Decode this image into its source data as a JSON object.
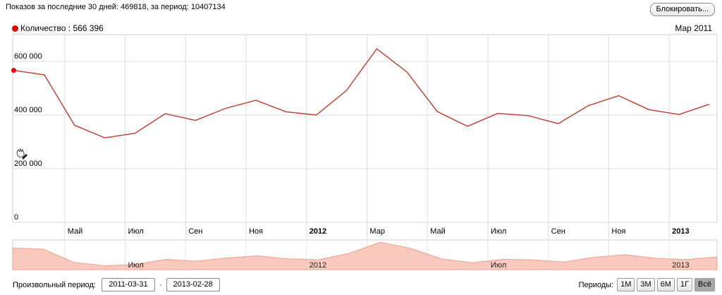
{
  "header": {
    "summary": "Показов за последние 30 дней: 469818, за период: 10407134",
    "block_button": "Блокировать..."
  },
  "legend": {
    "label": "Количество : 566 396",
    "color": "#e00000"
  },
  "current_date_label": "Мар 2011",
  "chart_data": {
    "type": "line",
    "title": "",
    "xlabel": "",
    "ylabel": "",
    "ylim": [
      0,
      700000
    ],
    "y_ticks": [
      "600 000",
      "400 000",
      "200 000",
      "0"
    ],
    "y_tick_values": [
      600000,
      400000,
      200000,
      0
    ],
    "x_ticks": [
      {
        "label": "Май",
        "bold": false
      },
      {
        "label": "Июл",
        "bold": false
      },
      {
        "label": "Сен",
        "bold": false
      },
      {
        "label": "Ноя",
        "bold": false
      },
      {
        "label": "2012",
        "bold": true
      },
      {
        "label": "Мар",
        "bold": false
      },
      {
        "label": "Май",
        "bold": false
      },
      {
        "label": "Июл",
        "bold": false
      },
      {
        "label": "Сен",
        "bold": false
      },
      {
        "label": "Ноя",
        "bold": false
      },
      {
        "label": "2013",
        "bold": true
      }
    ],
    "x": [
      "2011-03",
      "2011-04",
      "2011-05",
      "2011-06",
      "2011-07",
      "2011-08",
      "2011-09",
      "2011-10",
      "2011-11",
      "2011-12",
      "2012-01",
      "2012-02",
      "2012-03",
      "2012-04",
      "2012-05",
      "2012-06",
      "2012-07",
      "2012-08",
      "2012-09",
      "2012-10",
      "2012-11",
      "2012-12",
      "2013-01",
      "2013-02"
    ],
    "series": [
      {
        "name": "Количество",
        "color": "#c0392b",
        "values": [
          566396,
          550000,
          362000,
          315000,
          332000,
          405000,
          380000,
          425000,
          455000,
          412000,
          400000,
          492000,
          647000,
          560000,
          413000,
          358000,
          406000,
          398000,
          368000,
          435000,
          472000,
          420000,
          402000,
          440000
        ]
      }
    ],
    "grid": true,
    "legend_position": "top-left"
  },
  "navigator": {
    "labels": [
      "Июл",
      "2012",
      "Июл",
      "2013"
    ],
    "fill_color": "#f9c9bd",
    "line_color": "#f0a090"
  },
  "bottom": {
    "period_label": "Произвольный период:",
    "from": "2011-03-31",
    "separator": "-",
    "to": "2013-02-28",
    "periods_label": "Периоды:",
    "buttons": [
      "1М",
      "3М",
      "6М",
      "1Г",
      "Всё"
    ],
    "active_button": "Всё"
  }
}
